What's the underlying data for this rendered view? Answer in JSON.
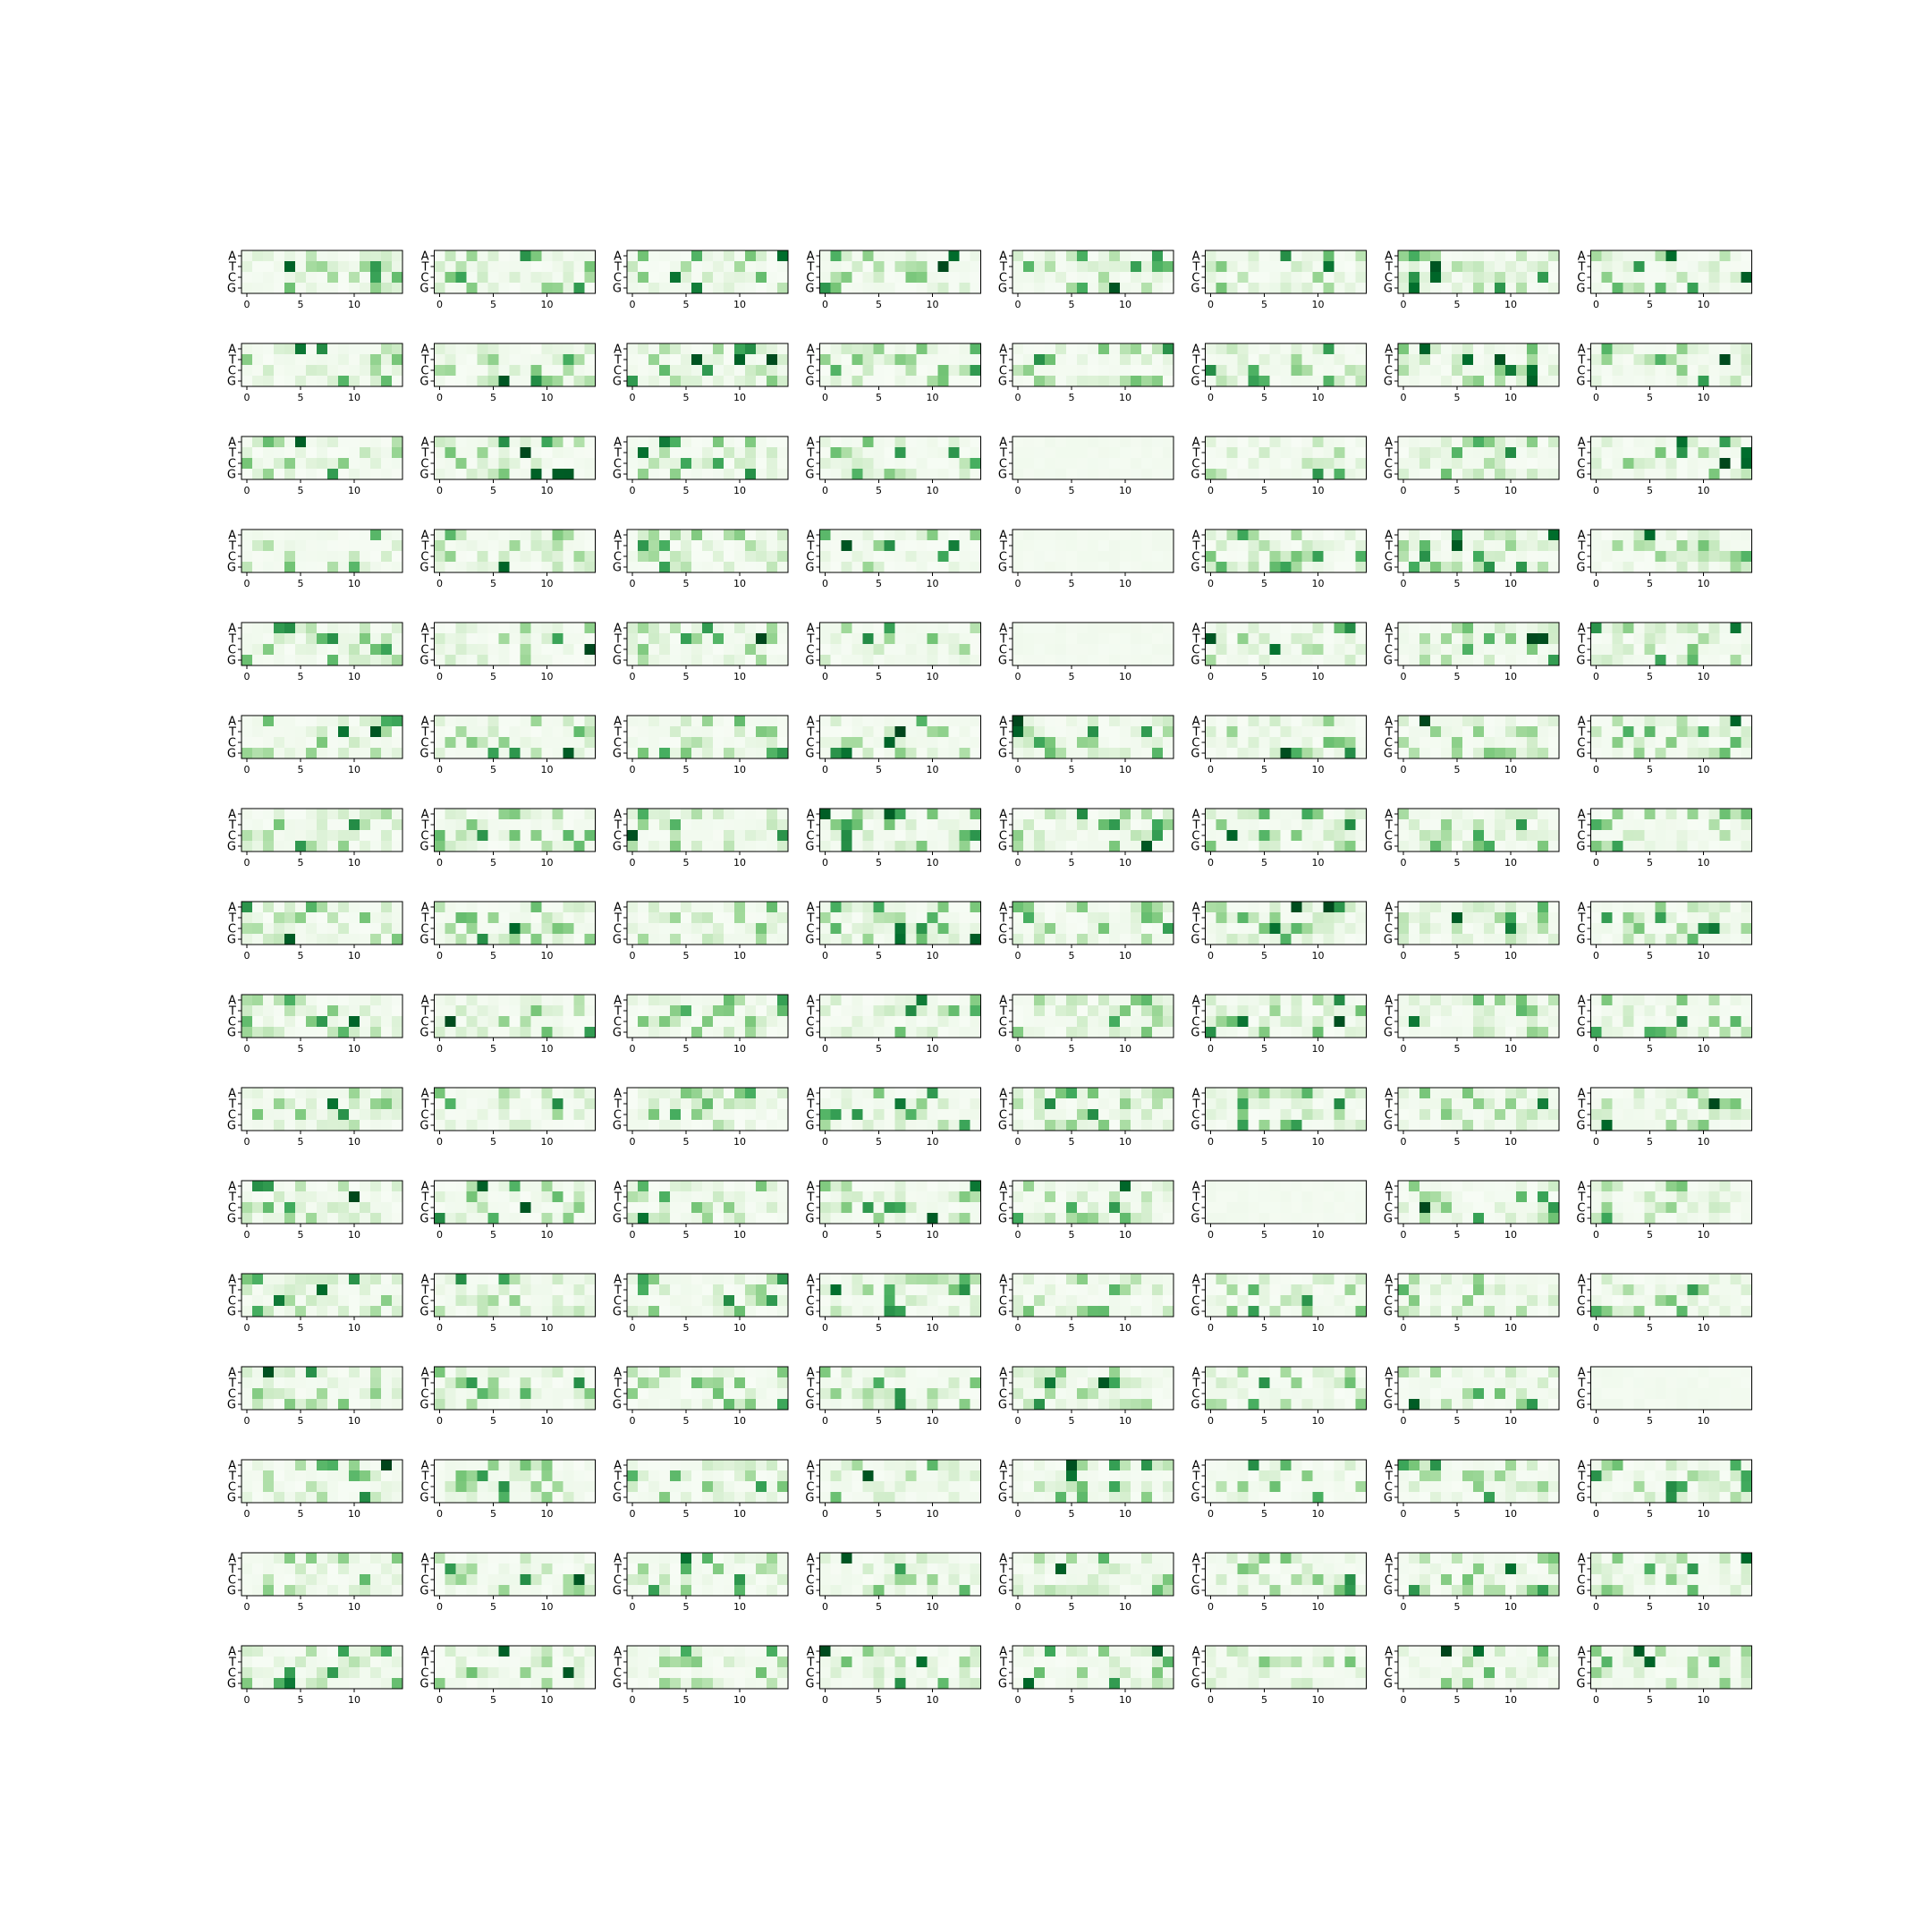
{
  "chart_data": {
    "type": "heatmap",
    "layout": {
      "rows": 16,
      "cols": 8
    },
    "rows_labels": [
      "A",
      "T",
      "C",
      "G"
    ],
    "positions": 15,
    "x_ticks": [
      0,
      5,
      10
    ],
    "colormap": "Greens",
    "value_range": [
      0,
      1
    ],
    "colors": {
      "low": "#f7fcf5",
      "high": "#00441b",
      "frame": "#000000"
    },
    "grid": false,
    "panel_count": 128,
    "generator": {
      "note_panel_values": "Panel cell intensities estimated from the colour map (0 = white, 1 = darkest green); panels are a 16 x 8 grid, each 4 nucleotides x 15 positions.",
      "empty_panels": [
        20,
        28,
        36,
        85,
        103
      ]
    }
  }
}
